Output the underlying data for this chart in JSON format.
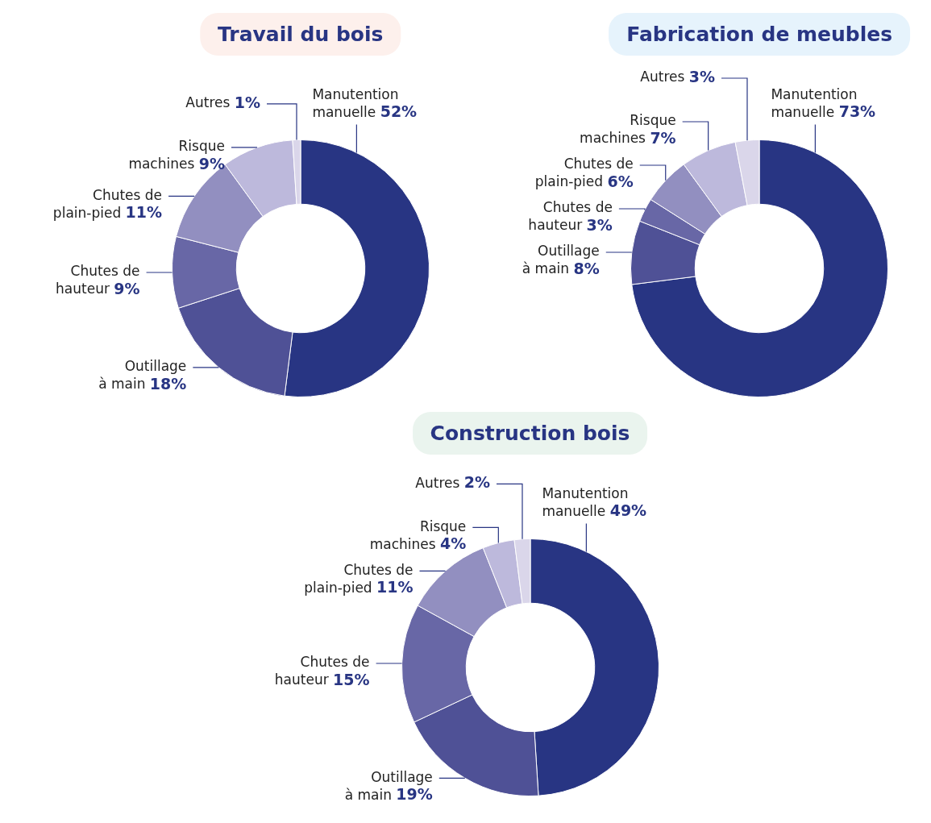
{
  "chart_data": [
    {
      "type": "donut",
      "title": "Travail du bois",
      "categories": [
        "Manutention manuelle",
        "Outillage à main",
        "Chutes de hauteur",
        "Chutes de plain-pied",
        "Risque machines",
        "Autres"
      ],
      "values": [
        52,
        18,
        9,
        11,
        9,
        1
      ],
      "colors": [
        "#283583",
        "#4f5196",
        "#6867a6",
        "#928fc0",
        "#bdb9dc",
        "#dad6ea"
      ],
      "value_labels": [
        "52%",
        "18%",
        "9%",
        "11%",
        "9%",
        "1%"
      ]
    },
    {
      "type": "donut",
      "title": "Fabrication de meubles",
      "categories": [
        "Manutention manuelle",
        "Outillage à main",
        "Chutes de hauteur",
        "Chutes de plain-pied",
        "Risque machines",
        "Autres"
      ],
      "values": [
        73,
        8,
        3,
        6,
        7,
        3
      ],
      "colors": [
        "#283583",
        "#4f5196",
        "#6867a6",
        "#928fc0",
        "#bdb9dc",
        "#dad6ea"
      ],
      "value_labels": [
        "73%",
        "8%",
        "3%",
        "6%",
        "7%",
        "3%"
      ]
    },
    {
      "type": "donut",
      "title": "Construction bois",
      "categories": [
        "Manutention manuelle",
        "Outillage à main",
        "Chutes de hauteur",
        "Chutes de plain-pied",
        "Risque machines",
        "Autres"
      ],
      "values": [
        49,
        19,
        15,
        11,
        4,
        2
      ],
      "colors": [
        "#283583",
        "#4f5196",
        "#6867a6",
        "#928fc0",
        "#bdb9dc",
        "#dad6ea"
      ],
      "value_labels": [
        "49%",
        "19%",
        "15%",
        "11%",
        "4%",
        "2%"
      ]
    }
  ]
}
